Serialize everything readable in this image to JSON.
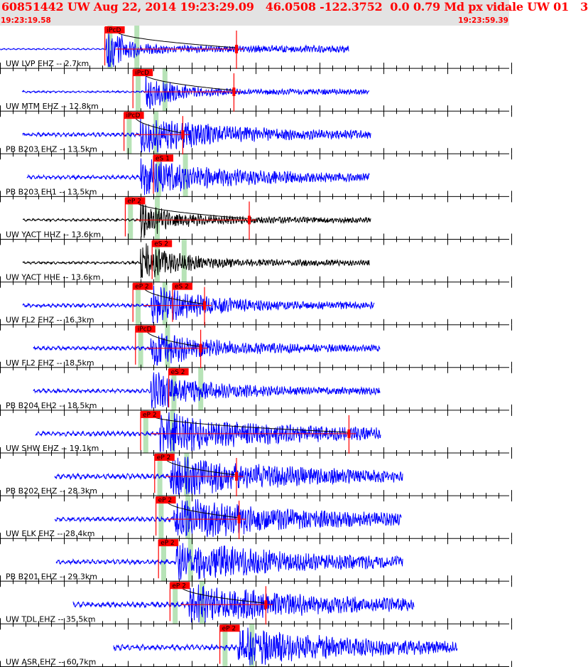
{
  "header": {
    "title": "60851442 UW Aug 22, 2014 19:23:29.09   46.0508 -122.3752  0.0 0.79 Md px vidale UW 01   3",
    "start_time": "19:23:19.58",
    "end_time": "19:23:59.39"
  },
  "colors": {
    "header_bg": "#e3e3e3",
    "header_text": "#ff0000",
    "trace_blue": "#0000ff",
    "trace_black": "#000000",
    "pick_red": "#ff0000",
    "predicted_band": "#b7e3b7",
    "grid": "#000000"
  },
  "channels": [
    {
      "label": "UW LVP EHZ -- 2.7km",
      "color": "#0000ff",
      "picks": [
        {
          "text": "iPcD",
          "t": 8.2
        }
      ],
      "coda": 18.5,
      "wave": {
        "start": 0.0,
        "end": 27.3,
        "onset": 8.3,
        "amp": 32,
        "noise": 0.6,
        "decay": 5
      }
    },
    {
      "label": "UW MTM EHZ -- 12.8km",
      "color": "#0000ff",
      "picks": [
        {
          "text": "iPcD",
          "t": 10.4
        }
      ],
      "coda": 18.3,
      "wave": {
        "start": 1.7,
        "end": 28.9,
        "onset": 11.4,
        "amp": 24,
        "noise": 0.8,
        "decay": 7
      }
    },
    {
      "label": "PB B203 EHZ -- 13.5km",
      "color": "#0000ff",
      "picks": [
        {
          "text": "iPcD",
          "t": 9.7
        }
      ],
      "coda": 14.3,
      "wave": {
        "start": 1.8,
        "end": 29.0,
        "onset": 11.0,
        "amp": 24,
        "noise": 1.5,
        "decay": 20
      }
    },
    {
      "label": "PB B203 EH1 -- 13.5km",
      "color": "#0000ff",
      "picks": [
        {
          "text": "eS 1",
          "t": 12.0
        }
      ],
      "coda": null,
      "wave": {
        "start": 2.1,
        "end": 28.9,
        "onset": 11.0,
        "amp": 22,
        "noise": 1.5,
        "decay": 22
      }
    },
    {
      "label": "UW YACT HHZ -- 13.6km",
      "color": "#000000",
      "picks": [
        {
          "text": "eP 2",
          "t": 9.8
        }
      ],
      "coda": 19.5,
      "wave": {
        "start": 1.8,
        "end": 29.0,
        "onset": 11.0,
        "amp": 24,
        "noise": 1.0,
        "decay": 9
      }
    },
    {
      "label": "UW YACT HHE -- 13.6km",
      "color": "#000000",
      "picks": [
        {
          "text": "eS 2",
          "t": 11.9
        }
      ],
      "coda": null,
      "wave": {
        "start": 1.8,
        "end": 28.9,
        "onset": 11.0,
        "amp": 24,
        "noise": 1.0,
        "decay": 10
      }
    },
    {
      "label": "UW FL2 EHZ -- 16.3km",
      "color": "#0000ff",
      "picks": [
        {
          "text": "eP 2",
          "t": 10.4
        },
        {
          "text": "eS 2",
          "t": 13.5
        }
      ],
      "coda": 16.0,
      "wave": {
        "start": 1.8,
        "end": 29.3,
        "onset": 11.8,
        "amp": 24,
        "noise": 1.5,
        "decay": 14
      }
    },
    {
      "label": "UW FL2 EHZ -- 18.5km",
      "color": "#0000ff",
      "picks": [
        {
          "text": "iPcD",
          "t": 10.6
        }
      ],
      "coda": 15.7,
      "wave": {
        "start": 2.6,
        "end": 29.7,
        "onset": 11.8,
        "amp": 22,
        "noise": 1.5,
        "decay": 15
      }
    },
    {
      "label": "PB B204 EH2 -- 18.5km",
      "color": "#0000ff",
      "picks": [
        {
          "text": "eS 2",
          "t": 13.2
        }
      ],
      "coda": null,
      "wave": {
        "start": 2.6,
        "end": 29.7,
        "onset": 11.8,
        "amp": 22,
        "noise": 1.5,
        "decay": 15
      }
    },
    {
      "label": "UW SHW EHZ -- 19.1km",
      "color": "#0000ff",
      "picks": [
        {
          "text": "eP 2",
          "t": 11.0
        }
      ],
      "coda": 27.3,
      "wave": {
        "start": 2.8,
        "end": 29.8,
        "onset": 12.5,
        "amp": 24,
        "noise": 1.8,
        "decay": 30
      }
    },
    {
      "label": "PB B202 EHZ -- 28.3km",
      "color": "#0000ff",
      "picks": [
        {
          "text": "eP 2",
          "t": 12.1
        }
      ],
      "coda": 18.5,
      "wave": {
        "start": 4.3,
        "end": 31.5,
        "onset": 13.3,
        "amp": 24,
        "noise": 2.0,
        "decay": 30
      }
    },
    {
      "label": "UW ELK EHZ -- 28.4km",
      "color": "#0000ff",
      "picks": [
        {
          "text": "eP 2",
          "t": 12.2
        }
      ],
      "coda": 18.7,
      "wave": {
        "start": 4.3,
        "end": 31.4,
        "onset": 13.6,
        "amp": 26,
        "noise": 1.8,
        "decay": 30
      }
    },
    {
      "label": "PB B201 EHZ -- 29.3km",
      "color": "#0000ff",
      "picks": [
        {
          "text": "eP 2",
          "t": 12.4
        }
      ],
      "coda": null,
      "wave": {
        "start": 4.4,
        "end": 31.5,
        "onset": 13.8,
        "amp": 24,
        "noise": 1.8,
        "decay": 30
      }
    },
    {
      "label": "UW TDL EHZ -- 35.5km",
      "color": "#0000ff",
      "picks": [
        {
          "text": "eP 2",
          "t": 13.3
        }
      ],
      "coda": 20.8,
      "wave": {
        "start": 5.7,
        "end": 32.4,
        "onset": 14.8,
        "amp": 24,
        "noise": 2.2,
        "decay": 30
      }
    },
    {
      "label": "UW ASR EHZ -- 60.7km",
      "color": "#0000ff",
      "picks": [
        {
          "text": "eP 2",
          "t": 17.2
        }
      ],
      "coda": null,
      "wave": {
        "start": 8.9,
        "end": 35.8,
        "onset": 18.6,
        "amp": 22,
        "noise": 2.2,
        "decay": 30
      }
    }
  ]
}
